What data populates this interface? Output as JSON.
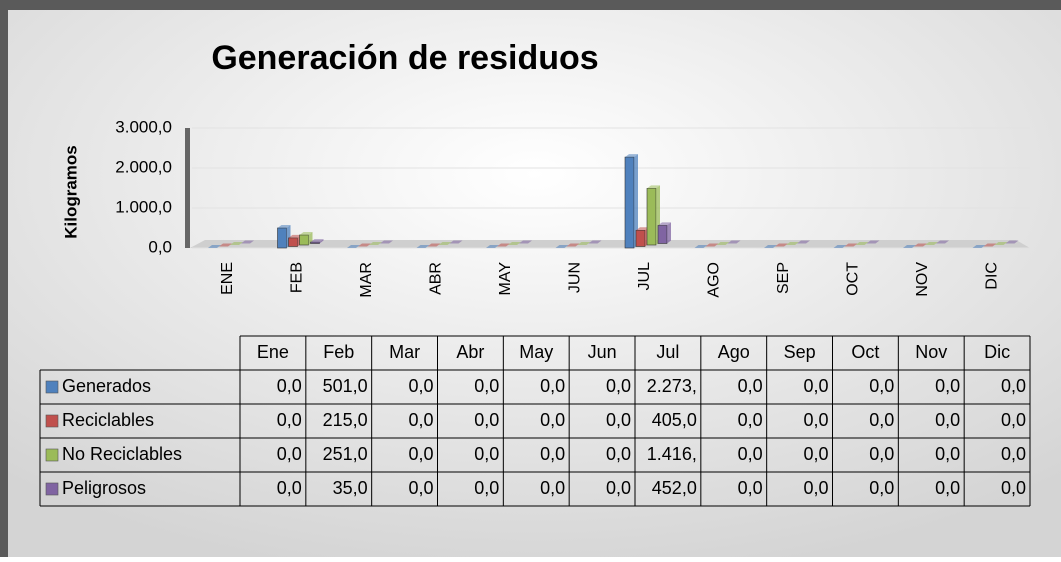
{
  "chart_data": {
    "type": "bar",
    "title": "Generación de residuos",
    "y_label": "Kilogramos",
    "categories": [
      "ENE",
      "FEB",
      "MAR",
      "ABR",
      "MAY",
      "JUN",
      "JUL",
      "AGO",
      "SEP",
      "OCT",
      "NOV",
      "DIC"
    ],
    "table_categories": [
      "Ene",
      "Feb",
      "Mar",
      "Abr",
      "May",
      "Jun",
      "Jul",
      "Ago",
      "Sep",
      "Oct",
      "Nov",
      "Dic"
    ],
    "ylim": [
      0,
      3000
    ],
    "yticks": [
      {
        "value": 0,
        "label": "0,0"
      },
      {
        "value": 1000,
        "label": "1.000,0"
      },
      {
        "value": 2000,
        "label": "2.000,0"
      },
      {
        "value": 3000,
        "label": "3.000,0"
      }
    ],
    "grid": true,
    "series": [
      {
        "name": "Generados",
        "color": "#4f81bd",
        "values": [
          0,
          501,
          0,
          0,
          0,
          0,
          2273,
          0,
          0,
          0,
          0,
          0
        ],
        "value_labels": [
          "0,0",
          "501,0",
          "0,0",
          "0,0",
          "0,0",
          "0,0",
          "2.273,",
          "0,0",
          "0,0",
          "0,0",
          "0,0",
          "0,0"
        ]
      },
      {
        "name": "Reciclables",
        "color": "#c0504d",
        "values": [
          0,
          215,
          0,
          0,
          0,
          0,
          405,
          0,
          0,
          0,
          0,
          0
        ],
        "value_labels": [
          "0,0",
          "215,0",
          "0,0",
          "0,0",
          "0,0",
          "0,0",
          "405,0",
          "0,0",
          "0,0",
          "0,0",
          "0,0",
          "0,0"
        ]
      },
      {
        "name": "No Reciclables",
        "color": "#9bbb59",
        "values": [
          0,
          251,
          0,
          0,
          0,
          0,
          1416,
          0,
          0,
          0,
          0,
          0
        ],
        "value_labels": [
          "0,0",
          "251,0",
          "0,0",
          "0,0",
          "0,0",
          "0,0",
          "1.416,",
          "0,0",
          "0,0",
          "0,0",
          "0,0",
          "0,0"
        ]
      },
      {
        "name": "Peligrosos",
        "color": "#8064a2",
        "values": [
          0,
          35,
          0,
          0,
          0,
          0,
          452,
          0,
          0,
          0,
          0,
          0
        ],
        "value_labels": [
          "0,0",
          "35,0",
          "0,0",
          "0,0",
          "0,0",
          "0,0",
          "452,0",
          "0,0",
          "0,0",
          "0,0",
          "0,0",
          "0,0"
        ]
      }
    ]
  }
}
